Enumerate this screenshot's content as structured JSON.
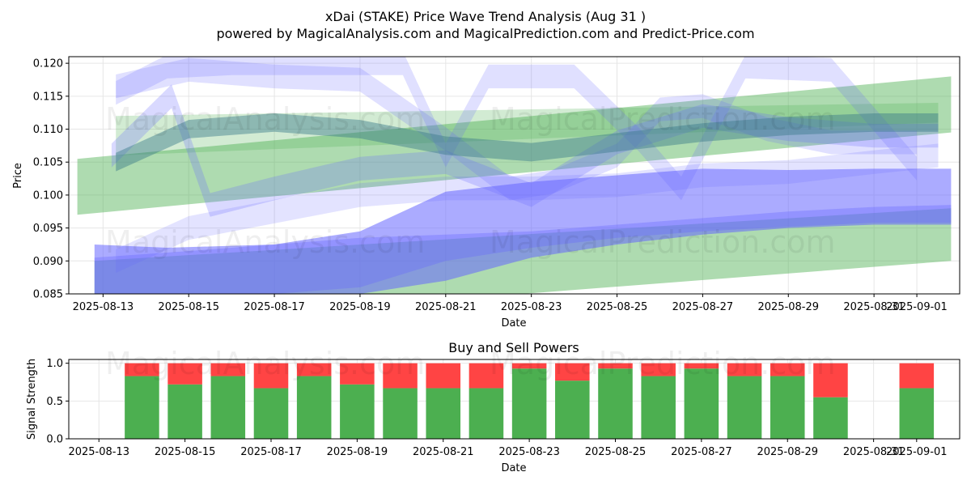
{
  "page_title": {
    "line1": "xDai (STAKE) Price Wave Trend Analysis (Aug 31 )",
    "line2": "powered by MagicalAnalysis.com and MagicalPrediction.com and Predict-Price.com"
  },
  "watermarks": [
    "MagicalAnalysis.com",
    "MagicalPrediction.com"
  ],
  "colors": {
    "green_band": "#4caf50",
    "blue_band": "#6666ff",
    "buy": "#4caf50",
    "sell": "#ff4444",
    "grid": "#e6e6e6"
  },
  "chart_data": [
    {
      "type": "area",
      "title": "",
      "xlabel": "Date",
      "ylabel": "Price",
      "ylim": [
        0.085,
        0.121
      ],
      "grid": true,
      "x_tick_labels": [
        "2025-08-13",
        "2025-08-15",
        "2025-08-17",
        "2025-08-19",
        "2025-08-21",
        "2025-08-23",
        "2025-08-25",
        "2025-08-27",
        "2025-08-29",
        "2025-08-31",
        "2025-09-01"
      ],
      "x_tick_days": [
        0,
        2,
        4,
        6,
        8,
        10,
        12,
        14,
        16,
        18,
        19
      ],
      "y_ticks": [
        0.085,
        0.09,
        0.095,
        0.1,
        0.105,
        0.11,
        0.115,
        0.12
      ],
      "y_tick_labels": [
        "0.085",
        "0.090",
        "0.095",
        "0.100",
        "0.105",
        "0.110",
        "0.115",
        "0.120"
      ],
      "xlim_days": [
        -0.8,
        20
      ],
      "series": [
        {
          "name": "green-trend-upper",
          "color": "green",
          "opacity": 0.45,
          "x": [
            -0.6,
            19.8
          ],
          "lower": [
            0.097,
            0.1095
          ],
          "upper": [
            0.1055,
            0.118
          ]
        },
        {
          "name": "green-trend-lower",
          "color": "green",
          "opacity": 0.45,
          "x": [
            -0.2,
            19.8
          ],
          "lower": [
            0.08,
            0.09
          ],
          "upper": [
            0.09,
            0.098
          ]
        },
        {
          "name": "green-trend-mid",
          "color": "green",
          "opacity": 0.25,
          "x": [
            0.3,
            19.5
          ],
          "lower": [
            0.106,
            0.111
          ],
          "upper": [
            0.112,
            0.114
          ]
        },
        {
          "name": "blue-base-lower",
          "color": "blue",
          "opacity": 0.55,
          "x": [
            -0.2,
            1.5,
            4,
            6,
            8,
            10,
            12,
            14,
            16,
            18,
            19.8
          ],
          "lower": [
            0.085,
            0.085,
            0.085,
            0.085,
            0.087,
            0.0905,
            0.0925,
            0.094,
            0.095,
            0.0955,
            0.0955
          ],
          "upper": [
            0.0925,
            0.092,
            0.0925,
            0.0945,
            0.1005,
            0.102,
            0.103,
            0.104,
            0.1038,
            0.104,
            0.104
          ]
        },
        {
          "name": "blue-base-dark",
          "color": "blue",
          "opacity": 0.35,
          "x": [
            -0.2,
            2,
            4,
            6,
            8,
            10,
            12,
            14,
            16,
            18,
            19.8
          ],
          "lower": [
            0.085,
            0.085,
            0.085,
            0.086,
            0.09,
            0.092,
            0.0935,
            0.0945,
            0.0952,
            0.0958,
            0.0958
          ],
          "upper": [
            0.0905,
            0.0915,
            0.0925,
            0.0935,
            0.094,
            0.0945,
            0.0955,
            0.0965,
            0.0975,
            0.0982,
            0.0985
          ]
        },
        {
          "name": "blue-wave-1",
          "color": "blue",
          "opacity": 0.25,
          "x": [
            0.2,
            1.6,
            2.5,
            4,
            6,
            8,
            10,
            12,
            14,
            16,
            18,
            19.5
          ],
          "center": [
            0.106,
            0.115,
            0.0985,
            0.101,
            0.104,
            0.105,
            0.1,
            0.108,
            0.112,
            0.11,
            0.109,
            0.109
          ],
          "width": 0.0018
        },
        {
          "name": "blue-wave-2",
          "color": "blue",
          "opacity": 0.2,
          "x": [
            0.3,
            2,
            4,
            6,
            8,
            9.5,
            10.5,
            12,
            13,
            14,
            15.5,
            17,
            19
          ],
          "center": [
            0.1165,
            0.119,
            0.118,
            0.1175,
            0.1085,
            0.101,
            0.102,
            0.106,
            0.113,
            0.1135,
            0.11,
            0.108,
            0.108
          ],
          "width": 0.0018
        },
        {
          "name": "blue-wave-3",
          "color": "blue",
          "opacity": 0.2,
          "x": [
            0.3,
            1.5,
            3,
            5,
            7,
            8,
            9,
            11,
            12.5,
            13.5,
            15,
            17,
            19
          ],
          "center": [
            0.1155,
            0.1195,
            0.12,
            0.12,
            0.12,
            0.106,
            0.118,
            0.118,
            0.1085,
            0.101,
            0.1195,
            0.119,
            0.104
          ],
          "width": 0.0018
        },
        {
          "name": "blue-wave-4",
          "color": "blue",
          "opacity": 0.18,
          "x": [
            0.3,
            2,
            4,
            6,
            8,
            10,
            12,
            14,
            16,
            18,
            19.5
          ],
          "center": [
            0.09,
            0.095,
            0.0975,
            0.1,
            0.101,
            0.101,
            0.1015,
            0.103,
            0.1035,
            0.105,
            0.106
          ],
          "width": 0.0018
        },
        {
          "name": "teal-trend",
          "color": "teal",
          "opacity": 0.45,
          "x": [
            0.3,
            2,
            4,
            6,
            8,
            10,
            12,
            14,
            16,
            18,
            19.5
          ],
          "center": [
            0.105,
            0.11,
            0.111,
            0.11,
            0.1075,
            0.1065,
            0.108,
            0.1095,
            0.1105,
            0.111,
            0.111
          ],
          "width": 0.0014
        }
      ]
    },
    {
      "type": "bar",
      "title": "Buy and Sell Powers",
      "xlabel": "Date",
      "ylabel": "Signal Strength",
      "ylim": [
        0,
        1.05
      ],
      "grid": true,
      "x_tick_labels": [
        "2025-08-13",
        "2025-08-15",
        "2025-08-17",
        "2025-08-19",
        "2025-08-21",
        "2025-08-23",
        "2025-08-25",
        "2025-08-27",
        "2025-08-29",
        "2025-08-31",
        "2025-09-01"
      ],
      "x_tick_days": [
        0,
        2,
        4,
        6,
        8,
        10,
        12,
        14,
        16,
        18,
        19
      ],
      "y_ticks": [
        0.0,
        0.5,
        1.0
      ],
      "y_tick_labels": [
        "0.0",
        "0.5",
        "1.0"
      ],
      "xlim_days": [
        -0.7,
        20
      ],
      "days": [
        1,
        2,
        3,
        4,
        5,
        6,
        7,
        8,
        9,
        10,
        11,
        12,
        13,
        14,
        15,
        16,
        17,
        19
      ],
      "series": [
        {
          "name": "Buy",
          "values": [
            0.83,
            0.72,
            0.83,
            0.67,
            0.83,
            0.72,
            0.67,
            0.67,
            0.67,
            0.93,
            0.77,
            0.93,
            0.83,
            0.93,
            0.83,
            0.83,
            0.55,
            0.67
          ]
        },
        {
          "name": "Sell",
          "values": [
            0.17,
            0.28,
            0.17,
            0.33,
            0.17,
            0.28,
            0.33,
            0.33,
            0.33,
            0.07,
            0.23,
            0.07,
            0.17,
            0.07,
            0.17,
            0.17,
            0.45,
            0.33
          ]
        }
      ]
    }
  ]
}
